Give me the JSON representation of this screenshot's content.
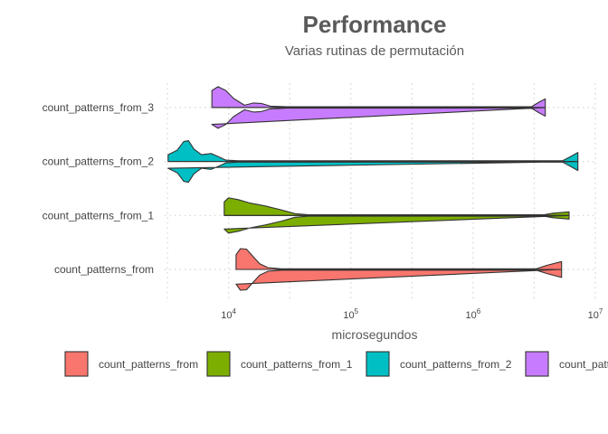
{
  "chart_data": {
    "type": "violin",
    "title": "Performance",
    "subtitle": "Varias rutinas de permutación",
    "xlabel": "microsegundos",
    "ylabel": "",
    "x_scale": "log10",
    "xlim": [
      3000,
      10000000
    ],
    "x_ticks": [
      {
        "value": 10000,
        "base": "10",
        "exp": "4"
      },
      {
        "value": 100000,
        "base": "10",
        "exp": "5"
      },
      {
        "value": 1000000,
        "base": "10",
        "exp": "6"
      },
      {
        "value": 10000000,
        "base": "10",
        "exp": "7"
      }
    ],
    "grid": true,
    "legend_position": "bottom",
    "series": [
      {
        "name": "count_patterns_from",
        "color": "#F8766D",
        "min": 11500,
        "max": 5300000,
        "profile": [
          [
            11500,
            0.65
          ],
          [
            12500,
            0.92
          ],
          [
            14000,
            0.9
          ],
          [
            16000,
            0.55
          ],
          [
            18000,
            0.25
          ],
          [
            21000,
            0.08
          ],
          [
            27000,
            0.03
          ],
          [
            40000,
            0.03
          ],
          [
            3300000,
            0.03
          ],
          [
            4000000,
            0.18
          ],
          [
            5300000,
            0.35
          ]
        ]
      },
      {
        "name": "count_patterns_from_1",
        "color": "#7CAE00",
        "min": 9200,
        "max": 6100000,
        "profile": [
          [
            9200,
            0.6
          ],
          [
            10000,
            0.78
          ],
          [
            12000,
            0.7
          ],
          [
            15000,
            0.55
          ],
          [
            20000,
            0.42
          ],
          [
            27000,
            0.25
          ],
          [
            35000,
            0.08
          ],
          [
            45000,
            0.03
          ],
          [
            3800000,
            0.03
          ],
          [
            4500000,
            0.1
          ],
          [
            6100000,
            0.16
          ]
        ]
      },
      {
        "name": "count_patterns_from_2",
        "color": "#00BFC4",
        "min": 3200,
        "max": 7200000,
        "profile": [
          [
            3200,
            0.3
          ],
          [
            3800,
            0.5
          ],
          [
            4300,
            0.88
          ],
          [
            4700,
            0.92
          ],
          [
            5200,
            0.55
          ],
          [
            6000,
            0.3
          ],
          [
            7200,
            0.35
          ],
          [
            8200,
            0.22
          ],
          [
            9500,
            0.06
          ],
          [
            12000,
            0.03
          ],
          [
            5400000,
            0.03
          ],
          [
            6200000,
            0.2
          ],
          [
            7200000,
            0.4
          ]
        ]
      },
      {
        "name": "count_patterns_from_3",
        "color": "#C77CFF",
        "min": 7300,
        "max": 3900000,
        "profile": [
          [
            7300,
            0.75
          ],
          [
            8200,
            0.92
          ],
          [
            9500,
            0.75
          ],
          [
            11000,
            0.4
          ],
          [
            13500,
            0.1
          ],
          [
            16000,
            0.2
          ],
          [
            18500,
            0.18
          ],
          [
            22000,
            0.06
          ],
          [
            30000,
            0.03
          ],
          [
            3000000,
            0.03
          ],
          [
            3500000,
            0.25
          ],
          [
            3900000,
            0.38
          ]
        ]
      }
    ]
  }
}
